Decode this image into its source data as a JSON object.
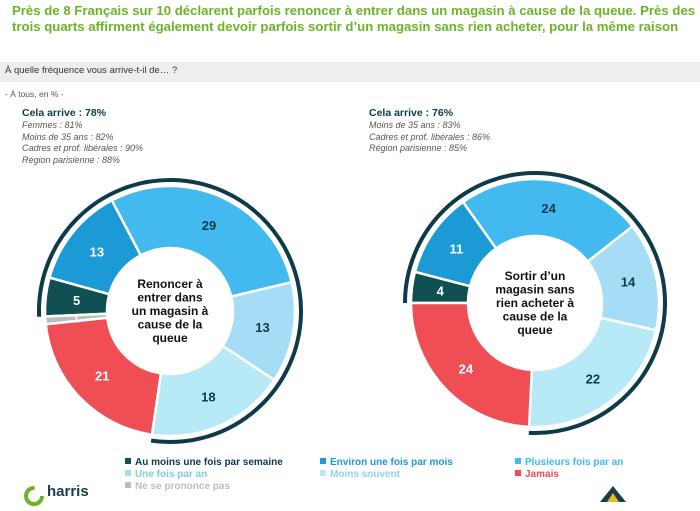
{
  "headline": "Près de 8 Français sur 10 déclarent parfois renoncer à entrer dans un magasin à cause de la queue. Près des trois quarts affirment également devoir parfois sortir d’un magasin sans rien acheter, pour la même raison",
  "question": "À quelle fréquence vous arrive-t-il de… ?",
  "base": "- À tous, en % -",
  "colors": {
    "headline": "#6BB42A",
    "Au moins une fois par semaine": "#104F52",
    "Environ une fois par mois": "#1C9AD6",
    "Plusieurs fois par an": "#42BAEF",
    "Une fois par an": "#A6DDF6",
    "Moins souvent": "#B8E9F7",
    "Jamais": "#EE4E54",
    "Ne se prononce pas": "#BDBDBD",
    "outer_arc": "#0E3A4A"
  },
  "chart_data": [
    {
      "type": "pie",
      "title": "Renoncer à entrer dans un magasin à cause de la queue",
      "center_lines": [
        "Renoncer à",
        "entrer dans",
        "un magasin à",
        "cause de la",
        "queue"
      ],
      "categories": [
        "Au moins une fois par semaine",
        "Environ une fois par mois",
        "Plusieurs fois par an",
        "Une fois par an",
        "Moins souvent",
        "Jamais",
        "Ne se prononce pas"
      ],
      "values": [
        5,
        13,
        29,
        13,
        18,
        21,
        1
      ],
      "summary": {
        "total": "Cela arrive : 78%",
        "lines": [
          "Femmes : 81%",
          "Moins de 35 ans : 82%",
          "Cadres et prof. libérales : 90%",
          "Région parisienne : 88%"
        ]
      }
    },
    {
      "type": "pie",
      "title": "Sortir d’un magasin sans rien acheter à cause de la queue",
      "center_lines": [
        "Sortir d’un",
        "magasin sans",
        "rien acheter à",
        "cause de la",
        "queue"
      ],
      "categories": [
        "Au moins une fois par semaine",
        "Environ une fois par mois",
        "Plusieurs fois par an",
        "Une fois par an",
        "Moins souvent",
        "Jamais",
        "Ne se prononce pas"
      ],
      "values": [
        4,
        11,
        24,
        14,
        22,
        24,
        0
      ],
      "summary": {
        "total": "Cela arrive : 76%",
        "lines": [
          "Moins de 35 ans : 83%",
          "Cadres et prof. libérales : 86%",
          "Région parisienne : 85%"
        ]
      }
    }
  ],
  "legend": [
    "Au moins une fois par semaine",
    "Environ une fois par mois",
    "Plusieurs fois par an",
    "Une fois par an",
    "Moins souvent",
    "Jamais",
    "Ne se prononce pas"
  ],
  "logo": {
    "name": "harris",
    "icon": "harris-logo-icon",
    "right_icon": "partner-logo-icon"
  }
}
